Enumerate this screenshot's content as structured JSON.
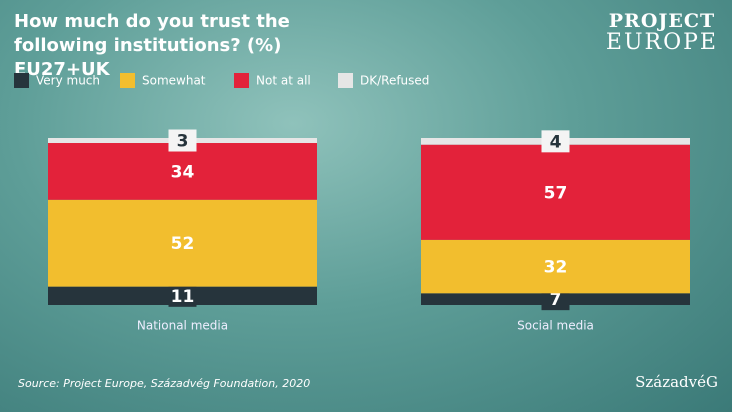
{
  "chart_data": {
    "type": "stacked-bar",
    "title": "How much do you trust the following institutions?  (%) EU27+UK",
    "categories": [
      "National media",
      "Social media"
    ],
    "series": [
      {
        "name": "Very much",
        "color": "#26343c",
        "values": [
          11,
          7
        ]
      },
      {
        "name": "Somewhat",
        "color": "#f2be2e",
        "values": [
          52,
          32
        ]
      },
      {
        "name": "Not at all",
        "color": "#e3223a",
        "values": [
          34,
          57
        ]
      },
      {
        "name": "DK/Refused",
        "color": "#e6e6e6",
        "values": [
          3,
          4
        ]
      }
    ],
    "source": "Source: Project Europe, Századvég Foundation, 2020"
  },
  "logo": {
    "line1": "PROJECT",
    "line2": "EUROPE",
    "partner": "SzázadvéG"
  }
}
